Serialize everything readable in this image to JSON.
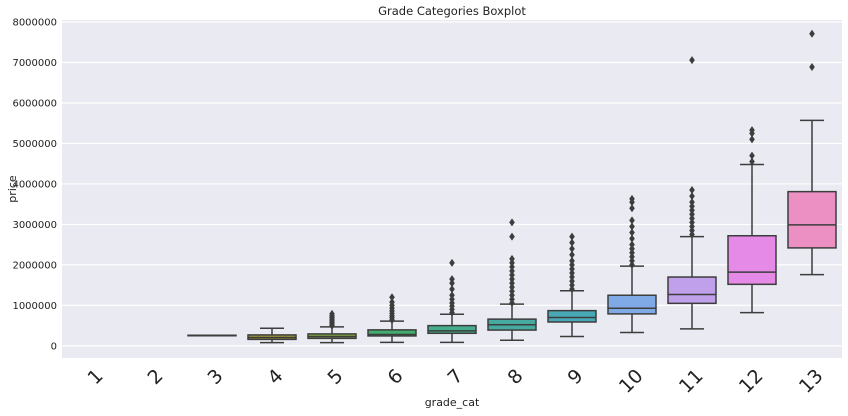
{
  "chart_data": {
    "type": "boxplot",
    "title": "Grade Categories Boxplot",
    "xlabel": "grade_cat",
    "ylabel": "price",
    "categories": [
      "1",
      "2",
      "3",
      "4",
      "5",
      "6",
      "7",
      "8",
      "9",
      "10",
      "11",
      "12",
      "13"
    ],
    "ylim": [
      -300000,
      8050000
    ],
    "yticks": [
      0,
      1000000,
      2000000,
      3000000,
      4000000,
      5000000,
      6000000,
      7000000,
      8000000
    ],
    "ytick_labels": [
      "0",
      "1000000",
      "2000000",
      "3000000",
      "4000000",
      "5000000",
      "6000000",
      "7000000",
      "8000000"
    ],
    "grid": true,
    "boxes": [
      {
        "category": "1",
        "present": false
      },
      {
        "category": "2",
        "present": false
      },
      {
        "category": "3",
        "present": true,
        "whisker_low": 262000,
        "q1": 262000,
        "median": 262000,
        "q3": 262000,
        "whisker_high": 262000,
        "color": "#c9a34a",
        "outliers": []
      },
      {
        "category": "4",
        "present": true,
        "whisker_low": 80000,
        "q1": 160000,
        "median": 205000,
        "q3": 270000,
        "whisker_high": 435000,
        "color": "#a5a035",
        "outliers": []
      },
      {
        "category": "5",
        "present": true,
        "whisker_low": 80000,
        "q1": 185000,
        "median": 230000,
        "q3": 295000,
        "whisker_high": 470000,
        "color": "#84ab43",
        "outliers": [
          500000,
          540000,
          580000,
          620000,
          660000,
          700000,
          740000,
          790000
        ]
      },
      {
        "category": "6",
        "present": true,
        "whisker_low": 85000,
        "q1": 245000,
        "median": 280000,
        "q3": 395000,
        "whisker_high": 610000,
        "color": "#43ad6e",
        "outliers": [
          640000,
          690000,
          740000,
          800000,
          860000,
          930000,
          1000000,
          1080000,
          1200000
        ]
      },
      {
        "category": "7",
        "present": true,
        "whisker_low": 85000,
        "q1": 310000,
        "median": 370000,
        "q3": 500000,
        "whisker_high": 780000,
        "color": "#45ad8c",
        "outliers": [
          820000,
          900000,
          980000,
          1060000,
          1150000,
          1250000,
          1400000,
          1550000,
          1650000,
          2050000
        ]
      },
      {
        "category": "8",
        "present": true,
        "whisker_low": 140000,
        "q1": 390000,
        "median": 520000,
        "q3": 660000,
        "whisker_high": 1030000,
        "color": "#47aaa0",
        "outliers": [
          1060000,
          1150000,
          1250000,
          1350000,
          1450000,
          1550000,
          1650000,
          1750000,
          1850000,
          1950000,
          2050000,
          2150000,
          2700000,
          3050000
        ]
      },
      {
        "category": "9",
        "present": true,
        "whisker_low": 230000,
        "q1": 590000,
        "median": 700000,
        "q3": 870000,
        "whisker_high": 1360000,
        "color": "#49a8b6",
        "outliers": [
          1400000,
          1500000,
          1600000,
          1700000,
          1800000,
          1900000,
          2000000,
          2100000,
          2250000,
          2400000,
          2550000,
          2700000
        ]
      },
      {
        "category": "10",
        "present": true,
        "whisker_low": 330000,
        "q1": 790000,
        "median": 930000,
        "q3": 1250000,
        "whisker_high": 1970000,
        "color": "#80aae6",
        "outliers": [
          2000000,
          2100000,
          2200000,
          2300000,
          2400000,
          2500000,
          2650000,
          2800000,
          2950000,
          3100000,
          3400000,
          3550000,
          3630000
        ]
      },
      {
        "category": "11",
        "present": true,
        "whisker_low": 420000,
        "q1": 1050000,
        "median": 1270000,
        "q3": 1700000,
        "whisker_high": 2700000,
        "color": "#c0a0ea",
        "outliers": [
          2750000,
          2850000,
          2950000,
          3050000,
          3150000,
          3250000,
          3350000,
          3450000,
          3550000,
          3700000,
          3850000,
          7060000
        ]
      },
      {
        "category": "12",
        "present": true,
        "whisker_low": 820000,
        "q1": 1520000,
        "median": 1820000,
        "q3": 2720000,
        "whisker_high": 4480000,
        "color": "#e58ae6",
        "outliers": [
          4550000,
          4700000,
          5100000,
          5250000,
          5330000
        ]
      },
      {
        "category": "13",
        "present": true,
        "whisker_low": 1760000,
        "q1": 2420000,
        "median": 2990000,
        "q3": 3810000,
        "whisker_high": 5570000,
        "color": "#ec8fc2",
        "outliers": [
          6890000,
          7710000
        ]
      }
    ]
  }
}
